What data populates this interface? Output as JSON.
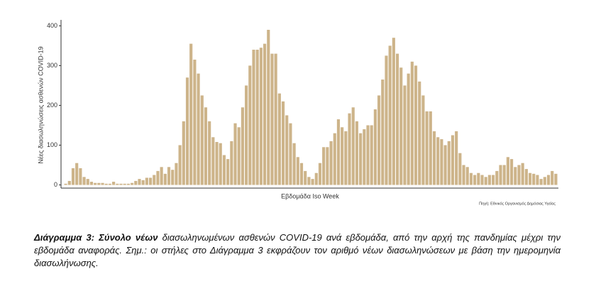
{
  "chart_data": {
    "type": "bar",
    "y_label": "Νέες διασωληνώσεις ασθενών COVID-19",
    "x_label": "Εβδομάδα Iso Week",
    "source": "Πηγή: Εθνικός Οργανισμός Δημόσιας Υγείας",
    "color": "#cdb48a",
    "values": [
      3,
      10,
      42,
      55,
      42,
      20,
      15,
      8,
      5,
      5,
      5,
      3,
      3,
      8,
      3,
      3,
      3,
      3,
      5,
      10,
      15,
      12,
      18,
      18,
      25,
      35,
      45,
      28,
      45,
      38,
      55,
      100,
      160,
      270,
      355,
      315,
      280,
      225,
      195,
      160,
      120,
      108,
      105,
      75,
      65,
      110,
      155,
      145,
      195,
      250,
      300,
      340,
      340,
      345,
      355,
      390,
      330,
      330,
      230,
      210,
      175,
      155,
      105,
      70,
      55,
      35,
      20,
      15,
      30,
      55,
      95,
      95,
      110,
      130,
      165,
      145,
      135,
      180,
      195,
      160,
      130,
      140,
      150,
      150,
      190,
      225,
      265,
      325,
      350,
      370,
      330,
      295,
      250,
      280,
      310,
      300,
      260,
      225,
      185,
      185,
      135,
      120,
      115,
      100,
      110,
      125,
      135,
      80,
      50,
      45,
      30,
      25,
      30,
      25,
      20,
      25,
      25,
      35,
      50,
      50,
      70,
      65,
      45,
      50,
      55,
      40,
      30,
      28,
      25,
      15,
      20,
      25,
      35,
      28
    ],
    "ylim": [
      -8,
      415
    ],
    "yticks": [
      0,
      100,
      200,
      300,
      400
    ],
    "grid": false
  },
  "caption": {
    "label": "Διάγραμμα 3: Σύνολο νέων",
    "text": " διασωληνωμένων ασθενών COVID-19 ανά εβδομάδα, από την αρχή της πανδημίας μέχρι την εβδομάδα αναφοράς.  Σημ.: οι στήλες στο Διάγραμμα 3 εκφράζουν τον αριθμό νέων διασωληνώσεων με βάση την ημερομηνία διασωλήνωσης."
  }
}
